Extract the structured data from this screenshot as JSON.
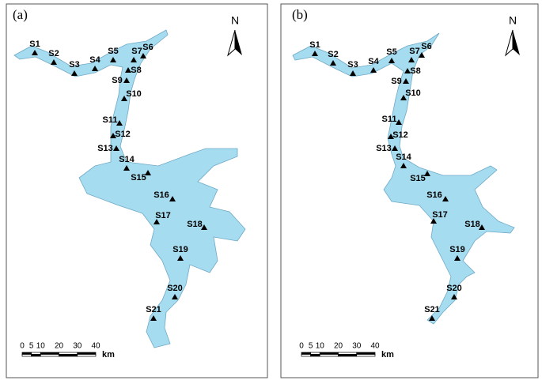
{
  "panels": [
    {
      "label": "(a)",
      "north": "N",
      "stations": [
        "S1",
        "S2",
        "S3",
        "S4",
        "S5",
        "S6",
        "S7",
        "S8",
        "S9",
        "S10",
        "S11",
        "S12",
        "S13",
        "S14",
        "S15",
        "S16",
        "S17",
        "S18",
        "S19",
        "S20",
        "S21"
      ],
      "scale": {
        "ticks": [
          0,
          5,
          10,
          20,
          30,
          40
        ],
        "unit": "km"
      }
    },
    {
      "label": "(b)",
      "north": "N",
      "stations": [
        "S1",
        "S2",
        "S3",
        "S4",
        "S5",
        "S6",
        "S7",
        "S8",
        "S9",
        "S10",
        "S11",
        "S12",
        "S13",
        "S14",
        "S15",
        "S16",
        "S17",
        "S18",
        "S19",
        "S20",
        "S21"
      ],
      "scale": {
        "ticks": [
          0,
          5,
          10,
          20,
          30,
          40
        ],
        "unit": "km"
      }
    }
  ]
}
